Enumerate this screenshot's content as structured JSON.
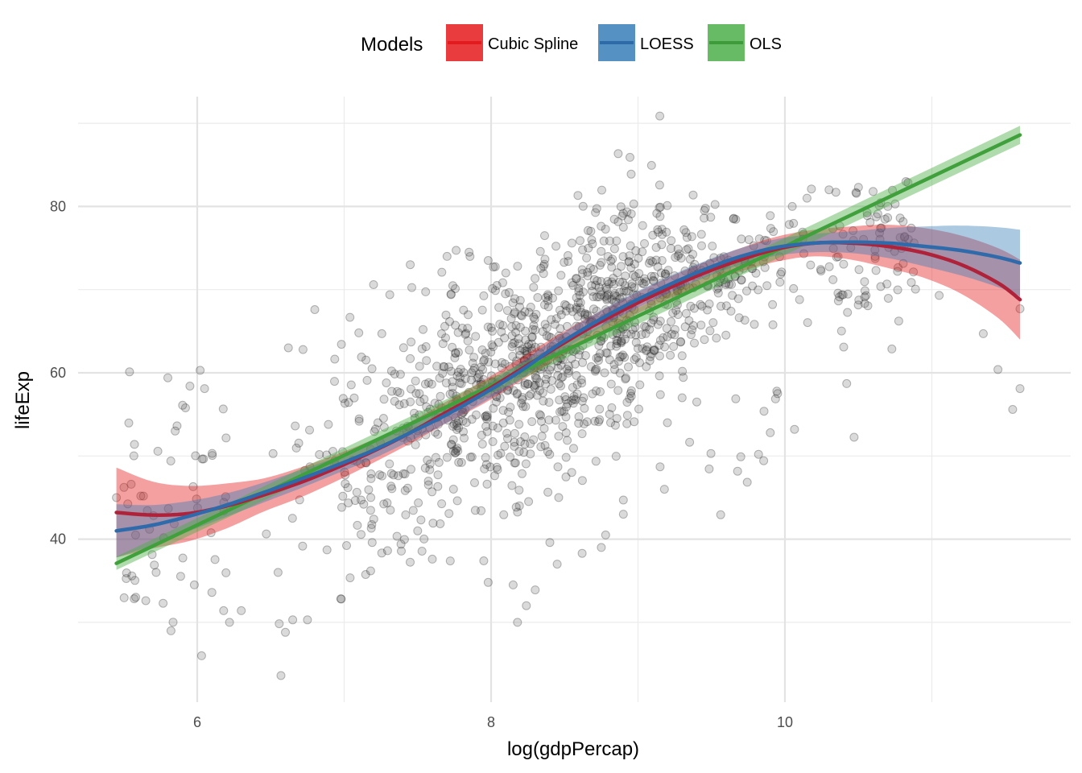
{
  "chart_data": {
    "type": "scatter",
    "xlabel": "log(gdpPercap)",
    "ylabel": "lifeExp",
    "xlim": [
      5.25,
      11.6
    ],
    "ylim": [
      21.5,
      91.5
    ],
    "x_ticks": [
      6,
      8,
      10
    ],
    "x_minor_ticks": [
      7,
      9,
      11
    ],
    "y_ticks": [
      40,
      60,
      80
    ],
    "y_minor_ticks": [
      30,
      50,
      70,
      90
    ],
    "grid": true,
    "legend": {
      "title": "Models",
      "position": "top",
      "entries": [
        {
          "label": "Cubic Spline",
          "color": "#E41A1C"
        },
        {
          "label": "LOESS",
          "color": "#377EB8"
        },
        {
          "label": "OLS",
          "color": "#4DAF4A"
        }
      ]
    },
    "scatter_style": {
      "color": "#000000",
      "opacity": 0.22
    },
    "points_approx_count": 1704,
    "scatter_anchor_points": [
      [
        5.45,
        45.0
      ],
      [
        5.55,
        46.6
      ],
      [
        5.65,
        32.6
      ],
      [
        5.72,
        36.0
      ],
      [
        5.8,
        59.4
      ],
      [
        5.82,
        49.4
      ],
      [
        5.85,
        53.0
      ],
      [
        5.9,
        56.1
      ],
      [
        5.95,
        58.4
      ],
      [
        6.02,
        60.3
      ],
      [
        6.05,
        58.1
      ],
      [
        5.98,
        34.5
      ],
      [
        6.1,
        33.6
      ],
      [
        6.18,
        31.4
      ],
      [
        6.22,
        30.0
      ],
      [
        6.3,
        31.4
      ],
      [
        6.55,
        36.0
      ],
      [
        6.6,
        28.8
      ],
      [
        6.65,
        30.3
      ],
      [
        6.75,
        30.3
      ],
      [
        6.57,
        23.6
      ],
      [
        6.98,
        32.8
      ],
      [
        6.8,
        67.6
      ],
      [
        6.62,
        63.0
      ],
      [
        6.72,
        62.8
      ],
      [
        7.1,
        64.8
      ],
      [
        7.2,
        70.6
      ],
      [
        7.45,
        73.0
      ],
      [
        7.7,
        74.0
      ],
      [
        7.85,
        74.5
      ],
      [
        7.98,
        73.5
      ],
      [
        8.1,
        72.0
      ],
      [
        8.55,
        75.6
      ],
      [
        8.9,
        77.5
      ],
      [
        9.15,
        78.8
      ],
      [
        9.45,
        78.6
      ],
      [
        9.65,
        78.5
      ],
      [
        9.9,
        78.9
      ],
      [
        10.05,
        80.0
      ],
      [
        10.15,
        81.0
      ],
      [
        10.3,
        82.0
      ],
      [
        10.5,
        82.3
      ],
      [
        10.6,
        81.8
      ],
      [
        10.75,
        80.3
      ],
      [
        10.7,
        80.0
      ],
      [
        11.05,
        69.3
      ],
      [
        11.35,
        64.7
      ],
      [
        11.45,
        60.4
      ],
      [
        11.55,
        55.6
      ],
      [
        11.6,
        58.1
      ],
      [
        11.6,
        67.7
      ],
      [
        10.4,
        63.1
      ],
      [
        10.42,
        58.7
      ],
      [
        10.1,
        68.8
      ],
      [
        9.95,
        57.5
      ],
      [
        9.9,
        52.8
      ],
      [
        9.82,
        50.2
      ],
      [
        9.7,
        49.9
      ],
      [
        9.4,
        56.5
      ],
      [
        9.3,
        57.0
      ],
      [
        9.2,
        54.0
      ],
      [
        9.15,
        48.7
      ],
      [
        9.18,
        46.0
      ],
      [
        8.9,
        43.0
      ],
      [
        8.9,
        44.7
      ],
      [
        8.78,
        40.5
      ],
      [
        8.75,
        39.0
      ],
      [
        8.62,
        38.3
      ],
      [
        8.45,
        37.0
      ],
      [
        8.4,
        39.6
      ],
      [
        8.3,
        33.9
      ],
      [
        8.24,
        32.0
      ],
      [
        8.18,
        30.0
      ],
      [
        8.15,
        34.5
      ],
      [
        7.98,
        34.8
      ],
      [
        7.95,
        37.4
      ],
      [
        7.6,
        37.6
      ],
      [
        7.5,
        41.0
      ]
    ],
    "series": [
      {
        "name": "Cubic Spline",
        "color": "#E41A1C",
        "x": [
          5.45,
          5.7,
          5.95,
          6.2,
          6.45,
          6.7,
          6.95,
          7.2,
          7.45,
          7.7,
          7.95,
          8.2,
          8.45,
          8.7,
          8.95,
          9.2,
          9.45,
          9.7,
          9.95,
          10.2,
          10.45,
          10.7,
          10.95,
          11.2,
          11.45,
          11.6
        ],
        "y": [
          43.2,
          42.9,
          43.1,
          44.0,
          45.3,
          46.8,
          48.6,
          50.6,
          52.8,
          55.3,
          57.7,
          60.4,
          63.1,
          65.7,
          68.0,
          70.1,
          72.0,
          73.6,
          74.9,
          75.6,
          75.6,
          75.2,
          74.4,
          73.0,
          70.8,
          68.8
        ],
        "band": [
          5.4,
          4.0,
          3.3,
          2.7,
          2.0,
          1.8,
          1.6,
          1.4,
          1.3,
          1.3,
          1.4,
          1.4,
          1.4,
          1.3,
          1.3,
          1.3,
          1.3,
          1.4,
          1.5,
          1.6,
          2.0,
          2.6,
          3.0,
          3.5,
          4.2,
          4.8
        ]
      },
      {
        "name": "LOESS",
        "color": "#377EB8",
        "x": [
          5.45,
          5.7,
          5.95,
          6.2,
          6.45,
          6.7,
          6.95,
          7.2,
          7.45,
          7.7,
          7.95,
          8.2,
          8.45,
          8.7,
          8.95,
          9.2,
          9.45,
          9.7,
          9.95,
          10.2,
          10.45,
          10.7,
          10.95,
          11.2,
          11.45,
          11.6
        ],
        "y": [
          41.0,
          41.7,
          42.8,
          44.1,
          45.6,
          47.2,
          48.9,
          50.7,
          52.8,
          55.0,
          57.5,
          60.2,
          63.3,
          66.0,
          68.4,
          70.5,
          72.4,
          74.0,
          75.1,
          75.6,
          75.7,
          75.6,
          75.2,
          74.7,
          73.9,
          73.2
        ],
        "band": [
          3.2,
          2.4,
          1.8,
          1.4,
          1.2,
          1.1,
          1.0,
          1.0,
          1.0,
          1.0,
          1.0,
          1.0,
          1.0,
          1.0,
          1.0,
          1.0,
          1.0,
          1.0,
          1.0,
          1.1,
          1.3,
          1.8,
          2.4,
          3.0,
          3.6,
          4.0
        ]
      },
      {
        "name": "OLS",
        "color": "#4DAF4A",
        "x": [
          5.45,
          11.6
        ],
        "y": [
          37.1,
          88.6
        ],
        "band": [
          0.8,
          1.1
        ]
      }
    ]
  }
}
